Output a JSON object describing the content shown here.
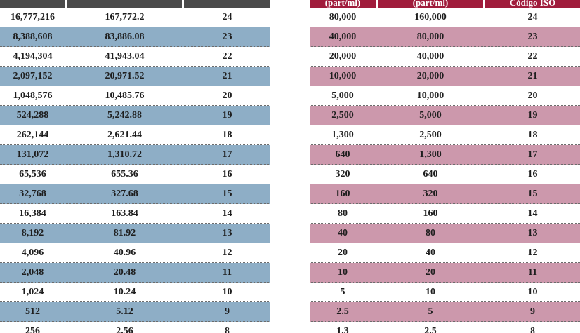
{
  "left_table": {
    "headers": [
      "",
      "",
      ""
    ],
    "rows": [
      [
        "16,777,216",
        "167,772.2",
        "24"
      ],
      [
        "8,388,608",
        "83,886.08",
        "23"
      ],
      [
        "4,194,304",
        "41,943.04",
        "22"
      ],
      [
        "2,097,152",
        "20,971.52",
        "21"
      ],
      [
        "1,048,576",
        "10,485.76",
        "20"
      ],
      [
        "524,288",
        "5,242.88",
        "19"
      ],
      [
        "262,144",
        "2,621.44",
        "18"
      ],
      [
        "131,072",
        "1,310.72",
        "17"
      ],
      [
        "65,536",
        "655.36",
        "16"
      ],
      [
        "32,768",
        "327.68",
        "15"
      ],
      [
        "16,384",
        "163.84",
        "14"
      ],
      [
        "8,192",
        "81.92",
        "13"
      ],
      [
        "4,096",
        "40.96",
        "12"
      ],
      [
        "2,048",
        "20.48",
        "11"
      ],
      [
        "1,024",
        "10.24",
        "10"
      ],
      [
        "512",
        "5.12",
        "9"
      ],
      [
        "256",
        "2.56",
        "8"
      ]
    ]
  },
  "right_table": {
    "headers": [
      "(part/ml)",
      "(part/ml)",
      "Código ISO"
    ],
    "rows": [
      [
        "80,000",
        "160,000",
        "24"
      ],
      [
        "40,000",
        "80,000",
        "23"
      ],
      [
        "20,000",
        "40,000",
        "22"
      ],
      [
        "10,000",
        "20,000",
        "21"
      ],
      [
        "5,000",
        "10,000",
        "20"
      ],
      [
        "2,500",
        "5,000",
        "19"
      ],
      [
        "1,300",
        "2,500",
        "18"
      ],
      [
        "640",
        "1,300",
        "17"
      ],
      [
        "320",
        "640",
        "16"
      ],
      [
        "160",
        "320",
        "15"
      ],
      [
        "80",
        "160",
        "14"
      ],
      [
        "40",
        "80",
        "13"
      ],
      [
        "20",
        "40",
        "12"
      ],
      [
        "10",
        "20",
        "11"
      ],
      [
        "5",
        "10",
        "10"
      ],
      [
        "2.5",
        "5",
        "9"
      ],
      [
        "1.3",
        "2.5",
        "8"
      ]
    ]
  },
  "colors": {
    "left_header": "#4a4a4a",
    "left_shade": "#8eaec6",
    "right_header": "#a01c3c",
    "right_shade": "#cc98ac"
  }
}
